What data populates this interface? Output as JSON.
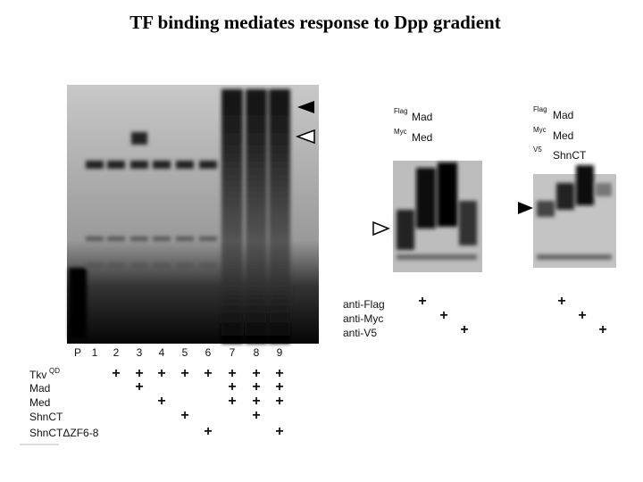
{
  "title": "TF binding mediates response to Dpp gradient",
  "left_panel": {
    "lanes": [
      "P",
      "1",
      "2",
      "3",
      "4",
      "5",
      "6",
      "7",
      "8",
      "9"
    ],
    "rows": [
      {
        "label": "Tkv",
        "superscript": "QD",
        "cells": [
          null,
          null,
          "+",
          "+",
          "+",
          "+",
          "+",
          "+",
          "+",
          "+"
        ]
      },
      {
        "label": "Mad",
        "cells": [
          null,
          null,
          null,
          "+",
          null,
          null,
          null,
          "+",
          "+",
          "+"
        ]
      },
      {
        "label": "Med",
        "cells": [
          null,
          null,
          null,
          null,
          "+",
          null,
          null,
          "+",
          "+",
          "+"
        ]
      },
      {
        "label": "ShnCT",
        "cells": [
          null,
          null,
          null,
          null,
          null,
          "+",
          null,
          null,
          "+",
          null
        ]
      },
      {
        "label": "ShnCTΔZF6-8",
        "cells": [
          null,
          null,
          null,
          null,
          null,
          null,
          "+",
          null,
          null,
          "+"
        ]
      }
    ]
  },
  "middle_panel": {
    "proteins": [
      {
        "tag": "Flag",
        "name": "Mad"
      },
      {
        "tag": "Myc",
        "name": "Med"
      }
    ],
    "antibodies": [
      {
        "label": "anti-Flag",
        "cells": [
          "+",
          null,
          null
        ]
      },
      {
        "label": "anti-Myc",
        "cells": [
          null,
          "+",
          null
        ]
      },
      {
        "label": "anti-V5",
        "cells": [
          null,
          null,
          "+"
        ]
      }
    ]
  },
  "right_panel": {
    "proteins": [
      {
        "tag": "Flag",
        "name": "Mad"
      },
      {
        "tag": "Myc",
        "name": "Med"
      },
      {
        "tag": "V5",
        "name": "ShnCT"
      }
    ],
    "antibody_cells": [
      [
        "+",
        null,
        null
      ],
      [
        null,
        "+",
        null
      ],
      [
        null,
        null,
        "+"
      ]
    ]
  }
}
